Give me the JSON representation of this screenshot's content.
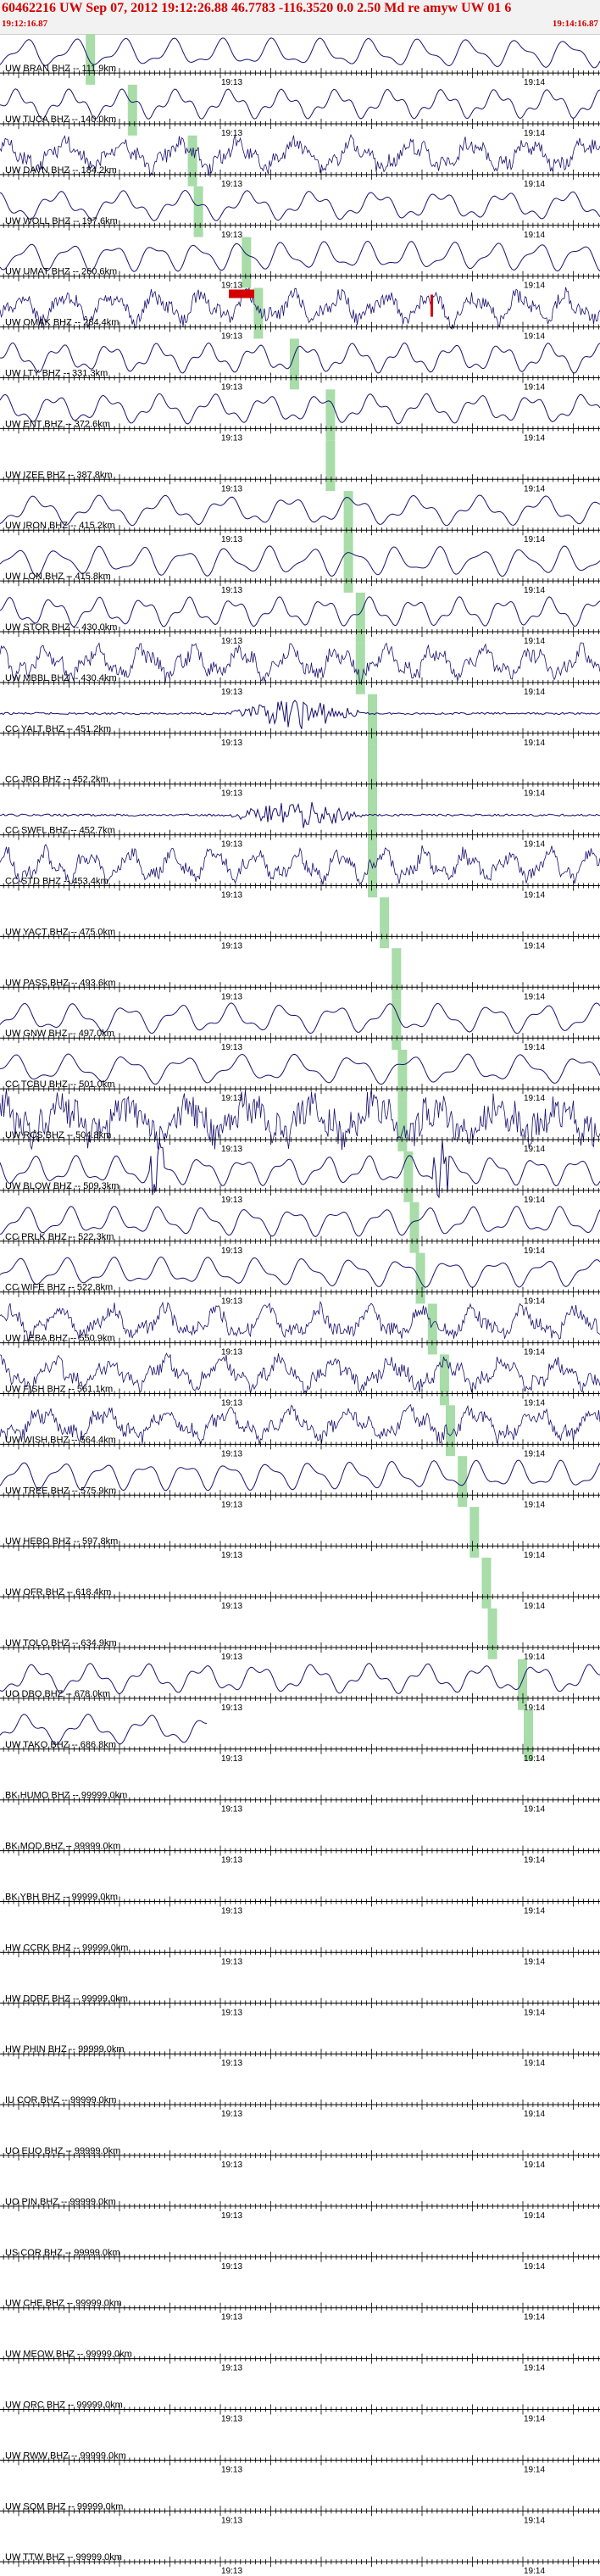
{
  "header": {
    "title": "60462216 UW Sep 07, 2012 19:12:26.88    46.7783 -116.3520  0.0 2.50 Md re amyw UW 01    6",
    "time_start": "19:12:16.87",
    "time_end": "19:14:16.87"
  },
  "time_axis": {
    "minute_marks": [
      "19:13",
      "19:14"
    ]
  },
  "colors": {
    "trace": "#1a1070",
    "pick_band": "#a8dca8",
    "pick_marker": "#d40000",
    "header_text": "#d40000"
  },
  "channels": [
    {
      "label": "UW BRAN BHZ -- 111.9km",
      "trace": "active",
      "pick": 0.15
    },
    {
      "label": "UW TUCA BHZ -- 140.0km",
      "trace": "active",
      "pick": 0.22
    },
    {
      "label": "UW DAVN BHZ -- 184.2km",
      "trace": "noisy",
      "pick": 0.32
    },
    {
      "label": "UW WOLL BHZ -- 197.6km",
      "trace": "active",
      "pick": 0.33
    },
    {
      "label": "UW UMAT BHZ -- 260.6km",
      "trace": "active",
      "pick": 0.41
    },
    {
      "label": "UW OMAK BHZ -- 284.4km",
      "trace": "noisy",
      "pick": 0.43,
      "picked": true
    },
    {
      "label": "UW LTY BHZ -- 331.3km",
      "trace": "active",
      "pick": 0.49
    },
    {
      "label": "UW ENT BHZ -- 372.6km",
      "trace": "active",
      "pick": 0.55
    },
    {
      "label": "UW IZEE BHZ -- 387.8km",
      "trace": "flat",
      "pick": 0.55
    },
    {
      "label": "UW IRON BHZ -- 415.2km",
      "trace": "active",
      "pick": 0.58
    },
    {
      "label": "UW LON BHZ -- 415.8km",
      "trace": "active",
      "pick": 0.58
    },
    {
      "label": "UW STOR BHZ -- 430.0km",
      "trace": "active",
      "pick": 0.6
    },
    {
      "label": "UW MBBL BHZ -- 430.4km",
      "trace": "noisy",
      "pick": 0.6
    },
    {
      "label": "CC YALT BHZ -- 451.2km",
      "trace": "burst",
      "pick": 0.62
    },
    {
      "label": "CC JRO BHZ -- 452.2km",
      "trace": "flat",
      "pick": 0.62
    },
    {
      "label": "CC SWFL BHZ -- 452.7km",
      "trace": "burst",
      "pick": 0.62
    },
    {
      "label": "CC STD BHZ -- 453.4km",
      "trace": "noisy",
      "pick": 0.62
    },
    {
      "label": "UW YACT BHZ -- 475.0km",
      "trace": "flat",
      "pick": 0.64
    },
    {
      "label": "UW PASS BHZ -- 493.6km",
      "trace": "flat",
      "pick": 0.66
    },
    {
      "label": "UW GNW BHZ -- 497.0km",
      "trace": "active",
      "pick": 0.66
    },
    {
      "label": "CC TCBU BHZ -- 501.0km",
      "trace": "active",
      "pick": 0.67
    },
    {
      "label": "UW RCS BHZ -- 504.8km",
      "trace": "band",
      "pick": 0.67
    },
    {
      "label": "UW BLOW BHZ -- 509.3km",
      "trace": "spike",
      "pick": 0.68
    },
    {
      "label": "CC PRLK BHZ -- 522.3km",
      "trace": "active",
      "pick": 0.69
    },
    {
      "label": "CC WIFE BHZ -- 522.8km",
      "trace": "active",
      "pick": 0.7
    },
    {
      "label": "UW LEBA BHZ -- 550.9km",
      "trace": "noisy",
      "pick": 0.72
    },
    {
      "label": "UW FISH BHZ -- 561.1km",
      "trace": "noisy",
      "pick": 0.74
    },
    {
      "label": "UW WISH BHZ -- 564.4km",
      "trace": "noisy",
      "pick": 0.75
    },
    {
      "label": "UW TREE BHZ -- 575.9km",
      "trace": "active",
      "pick": 0.77
    },
    {
      "label": "UW HEBO BHZ -- 597.8km",
      "trace": "flat",
      "pick": 0.79
    },
    {
      "label": "UW OFR BHZ -- 618.4km",
      "trace": "flat",
      "pick": 0.81
    },
    {
      "label": "UW TOLO BHZ -- 634.9km",
      "trace": "flat",
      "pick": 0.82
    },
    {
      "label": "UO DBO BHZ -- 678.0km",
      "trace": "active",
      "pick": 0.87
    },
    {
      "label": "UW TAKO BHZ -- 686.8km",
      "trace": "short",
      "pick": 0.88
    },
    {
      "label": "BK HUMO BHZ -- 99999.0km",
      "trace": "flat"
    },
    {
      "label": "BK MOD BHZ -- 99999.0km",
      "trace": "flat"
    },
    {
      "label": "BK YBH BHZ -- 99999.0km",
      "trace": "flat"
    },
    {
      "label": "HW CCRK BHZ -- 99999.0km",
      "trace": "flat"
    },
    {
      "label": "HW DDRF BHZ -- 99999.0km",
      "trace": "flat"
    },
    {
      "label": "HW PHIN BHZ -- 99999.0km",
      "trace": "flat"
    },
    {
      "label": "IU COR BHZ -- 99999.0km",
      "trace": "flat"
    },
    {
      "label": "UO EUO BHZ -- 99999.0km",
      "trace": "flat"
    },
    {
      "label": "UO PIN BHZ -- 99999.0km",
      "trace": "flat"
    },
    {
      "label": "US COR BHZ -- 99999.0km",
      "trace": "flat"
    },
    {
      "label": "UW CHE BHZ -- 99999.0km",
      "trace": "flat"
    },
    {
      "label": "UW MEOW BHZ -- 99999.0km",
      "trace": "flat"
    },
    {
      "label": "UW ORC BHZ -- 99999.0km",
      "trace": "flat"
    },
    {
      "label": "UW RWW BHZ -- 99999.0km",
      "trace": "flat"
    },
    {
      "label": "UW SQM BHZ -- 99999.0km",
      "trace": "flat"
    },
    {
      "label": "UW TTW BHZ -- 99999.0km",
      "trace": "flat"
    }
  ]
}
